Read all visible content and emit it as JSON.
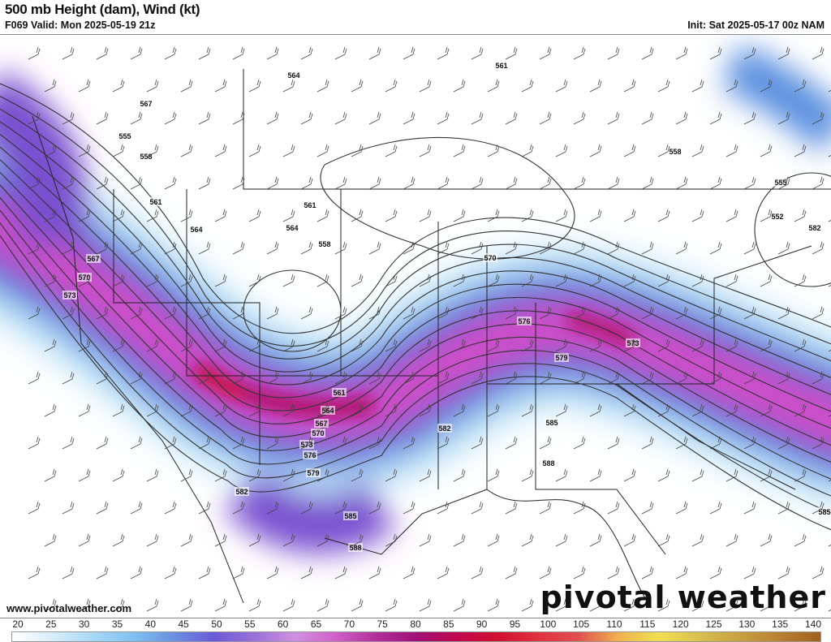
{
  "header": {
    "title": "500 mb Height (dam), Wind (kt)",
    "valid": "F069 Valid: Mon 2025-05-19 21z",
    "init": "Init: Sat 2025-05-17 00z NAM"
  },
  "footer": {
    "website": "www.pivotalweather.com",
    "logo": "pivotal weather"
  },
  "map": {
    "contour_labels": [
      "564",
      "561",
      "567",
      "555",
      "558",
      "561",
      "564",
      "567",
      "570",
      "573",
      "561",
      "564",
      "558",
      "570",
      "576",
      "579",
      "573",
      "561",
      "564",
      "567",
      "570",
      "573",
      "576",
      "579",
      "582",
      "585",
      "588",
      "582",
      "585",
      "588",
      "558",
      "555",
      "552",
      "582",
      "585"
    ],
    "fill_colors": {
      "light": "#bfe3f7",
      "blue": "#5a8fe0",
      "purple": "#7a4fd0",
      "magenta": "#d050c8",
      "deep": "#b0106a",
      "red": "#d01030"
    }
  },
  "colorbar": {
    "unit": "kt",
    "ticks": [
      "20",
      "25",
      "30",
      "35",
      "40",
      "45",
      "50",
      "55",
      "60",
      "65",
      "70",
      "75",
      "80",
      "85",
      "90",
      "95",
      "100",
      "105",
      "110",
      "115",
      "120",
      "125",
      "130",
      "135",
      "140"
    ],
    "colors": [
      "#ffffff",
      "#d8eefb",
      "#a8d8f5",
      "#80c0f0",
      "#6a90e0",
      "#6a5ad8",
      "#9a70d8",
      "#d090e0",
      "#d060c8",
      "#b03098",
      "#a01078",
      "#c00850",
      "#d01030",
      "#e03040",
      "#e05050",
      "#f0b050",
      "#f0e050",
      "#d8c050",
      "#c8a040",
      "#b88030",
      "#a06020"
    ]
  }
}
